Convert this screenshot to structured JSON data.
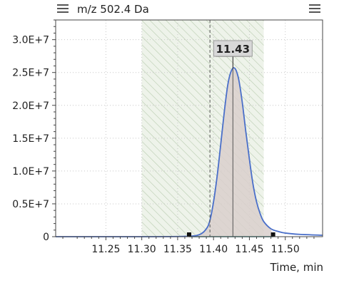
{
  "header": {
    "title": "m/z 502.4 Da",
    "menu_icons": [
      "hamburger-menu-icon",
      "hamburger-menu-icon"
    ]
  },
  "chart_data": {
    "type": "line",
    "title": "m/z 502.4 Da",
    "xlabel": "Time, min",
    "ylabel": "",
    "xlim": [
      11.18,
      11.552
    ],
    "ylim": [
      0,
      33000000
    ],
    "x_ticks": [
      11.25,
      11.3,
      11.35,
      11.4,
      11.45,
      11.5
    ],
    "x_tick_labels": [
      "11.25",
      "11.30",
      "11.35",
      "11.40",
      "11.45",
      "11.50"
    ],
    "y_ticks": [
      0,
      5000000,
      10000000,
      15000000,
      20000000,
      25000000,
      30000000
    ],
    "y_tick_labels": [
      "0",
      "0.5E+7",
      "1.0E+7",
      "1.5E+7",
      "2.0E+7",
      "2.5E+7",
      "3.0E+7"
    ],
    "grid": true,
    "series": [
      {
        "color": "#4a6fc9",
        "x": [
          11.18,
          11.3,
          11.36,
          11.38,
          11.39,
          11.395,
          11.4,
          11.405,
          11.41,
          11.415,
          11.42,
          11.425,
          11.43,
          11.435,
          11.44,
          11.445,
          11.45,
          11.455,
          11.46,
          11.465,
          11.47,
          11.48,
          11.49,
          11.5,
          11.52,
          11.552
        ],
        "y": [
          0,
          0,
          50000,
          300000,
          1200000,
          2500000,
          5300000,
          9200000,
          14000000,
          19000000,
          23200000,
          25300000,
          25600000,
          24000000,
          20500000,
          16000000,
          11800000,
          8000000,
          5300000,
          3500000,
          2300000,
          1200000,
          800000,
          550000,
          350000,
          220000
        ]
      }
    ],
    "annotations": {
      "peak_label": "11.43",
      "peak_x": 11.427,
      "peak_y": 25600000,
      "integration_window": [
        11.3,
        11.47
      ],
      "dashed_line_x": 11.395,
      "baseline_points": [
        {
          "x": 11.366,
          "y": 0
        },
        {
          "x": 11.483,
          "y": 0
        }
      ]
    },
    "colors": {
      "series": "#4a6fc9",
      "window_hatch": "#b9ccb0",
      "peak_fill": "#d9cfcc",
      "peak_line": "#555555",
      "baseline": "#3a8a8a"
    }
  }
}
